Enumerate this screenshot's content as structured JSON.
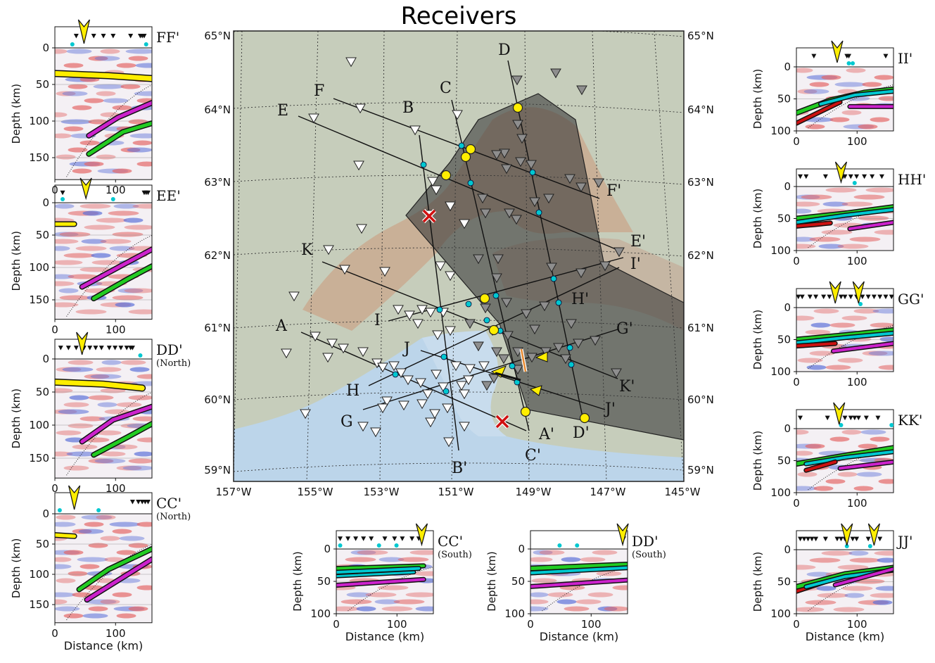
{
  "title": "Receivers",
  "map": {
    "lat_labels": [
      "65°N",
      "64°N",
      "63°N",
      "62°N",
      "61°N",
      "60°N",
      "59°N"
    ],
    "lon_labels": [
      "157°W",
      "155°W",
      "153°W",
      "151°W",
      "149°W",
      "147°W",
      "145°W"
    ],
    "profile_labels": [
      "A",
      "A'",
      "B",
      "B'",
      "C",
      "C'",
      "D",
      "D'",
      "E",
      "E'",
      "F",
      "F'",
      "G",
      "G'",
      "H",
      "H'",
      "I",
      "I'",
      "J",
      "J'",
      "K",
      "K'"
    ]
  },
  "panels": [
    {
      "id": "ff",
      "label": "FF'",
      "sub": "",
      "ylabel": "Depth (km)",
      "yticks": [
        "0",
        "50",
        "100",
        "150"
      ],
      "xticks": [
        "0",
        "100"
      ],
      "xlabel": ""
    },
    {
      "id": "ee",
      "label": "EE'",
      "sub": "",
      "ylabel": "Depth (km)",
      "yticks": [
        "0",
        "50",
        "100",
        "150"
      ],
      "xticks": [
        "0",
        "100"
      ],
      "xlabel": ""
    },
    {
      "id": "dd",
      "label": "DD'",
      "sub": "(North)",
      "ylabel": "Depth (km)",
      "yticks": [
        "0",
        "50",
        "100",
        "150"
      ],
      "xticks": [
        "0",
        "100"
      ],
      "xlabel": ""
    },
    {
      "id": "cc",
      "label": "CC'",
      "sub": "(North)",
      "ylabel": "Depth (km)",
      "yticks": [
        "0",
        "50",
        "100",
        "150"
      ],
      "xticks": [
        "0",
        "100"
      ],
      "xlabel": "Distance (km)"
    },
    {
      "id": "ccs",
      "label": "CC'",
      "sub": "(South)",
      "ylabel": "Depth (km)",
      "yticks": [
        "0",
        "50",
        "100"
      ],
      "xticks": [
        "0",
        "100"
      ],
      "xlabel": "Distance (km)"
    },
    {
      "id": "dds",
      "label": "DD'",
      "sub": "(South)",
      "ylabel": "Depth (km)",
      "yticks": [
        "0",
        "50",
        "100"
      ],
      "xticks": [
        "0",
        "100"
      ],
      "xlabel": "Distance (km)"
    },
    {
      "id": "ii",
      "label": "II'",
      "sub": "",
      "ylabel": "Depth (km)",
      "yticks": [
        "0",
        "50",
        "100"
      ],
      "xticks": [
        "0",
        "100"
      ],
      "xlabel": ""
    },
    {
      "id": "hh",
      "label": "HH'",
      "sub": "",
      "ylabel": "Depth (km)",
      "yticks": [
        "0",
        "50",
        "100"
      ],
      "xticks": [
        "0",
        "100"
      ],
      "xlabel": ""
    },
    {
      "id": "gg",
      "label": "GG'",
      "sub": "",
      "ylabel": "Depth (km)",
      "yticks": [
        "0",
        "50",
        "100"
      ],
      "xticks": [
        "0",
        "100"
      ],
      "xlabel": ""
    },
    {
      "id": "kk",
      "label": "KK'",
      "sub": "",
      "ylabel": "Depth (km)",
      "yticks": [
        "0",
        "50",
        "100"
      ],
      "xticks": [
        "0",
        "100"
      ],
      "xlabel": ""
    },
    {
      "id": "jj",
      "label": "JJ'",
      "sub": "",
      "ylabel": "Depth (km)",
      "yticks": [
        "0",
        "50",
        "100"
      ],
      "xticks": [
        "0",
        "100"
      ],
      "xlabel": "Distance (km)"
    }
  ],
  "colors": {
    "slab_top": "#22cc22",
    "slab_moho": "#cc22cc",
    "crust": "#ffee00",
    "cyan": "#00c8d0",
    "red": "#cc1111",
    "water": "#b8d4ea",
    "land": "#b8c4a8",
    "mountain": "#c4a890",
    "shade": "#404040"
  }
}
